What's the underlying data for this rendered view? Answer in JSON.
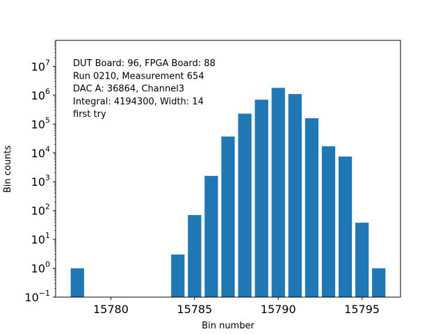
{
  "chart_data": {
    "type": "bar",
    "xlabel": "Bin number",
    "ylabel": "Bin counts",
    "yscale": "log",
    "xlim": [
      15776.7,
      15797.3
    ],
    "ylim": [
      0.1,
      80000000
    ],
    "x_ticks": [
      15780,
      15785,
      15790,
      15795
    ],
    "y_tick_exponents": [
      -1,
      0,
      1,
      2,
      3,
      4,
      5,
      6,
      7
    ],
    "y_tick_base": "10",
    "grid": false,
    "bar_color": "#1f77b4",
    "x": [
      15778,
      15784,
      15785,
      15786,
      15787,
      15788,
      15789,
      15790,
      15791,
      15792,
      15793,
      15794,
      15795,
      15796
    ],
    "values": [
      1,
      3,
      70,
      1600,
      37000,
      230000,
      700000,
      1800000,
      1100000,
      160000,
      17000,
      7500,
      38,
      1
    ],
    "annotation_lines": [
      "DUT Board: 96, FPGA Board: 88",
      "Run 0210, Measurement 654",
      "DAC A: 36864, Channel3",
      "Integral: 4194300, Width: 14",
      "first try"
    ]
  }
}
